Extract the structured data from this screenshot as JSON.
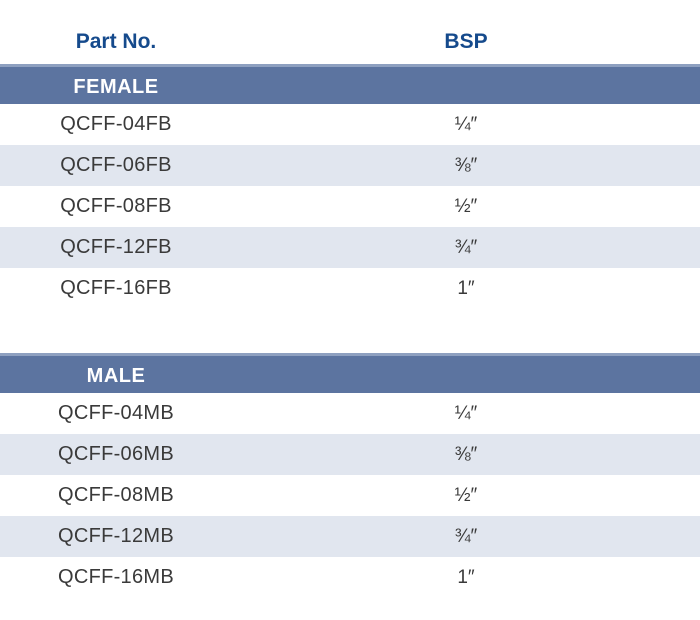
{
  "columns": {
    "part": "Part No.",
    "bsp": "BSP"
  },
  "sections": [
    {
      "title": "FEMALE",
      "rows": [
        {
          "part": "QCFF-04FB",
          "bsp": "¼″"
        },
        {
          "part": "QCFF-06FB",
          "bsp": "⅜″"
        },
        {
          "part": "QCFF-08FB",
          "bsp": "½″"
        },
        {
          "part": "QCFF-12FB",
          "bsp": "¾″"
        },
        {
          "part": "QCFF-16FB",
          "bsp": "1″"
        }
      ]
    },
    {
      "title": "MALE",
      "rows": [
        {
          "part": "QCFF-04MB",
          "bsp": "¼″"
        },
        {
          "part": "QCFF-06MB",
          "bsp": "⅜″"
        },
        {
          "part": "QCFF-08MB",
          "bsp": "½″"
        },
        {
          "part": "QCFF-12MB",
          "bsp": "¾″"
        },
        {
          "part": "QCFF-16MB",
          "bsp": "1″"
        }
      ]
    }
  ],
  "colors": {
    "header_text": "#154a8c",
    "band": "#5c74a0",
    "alt_row": "#e1e6ef"
  }
}
